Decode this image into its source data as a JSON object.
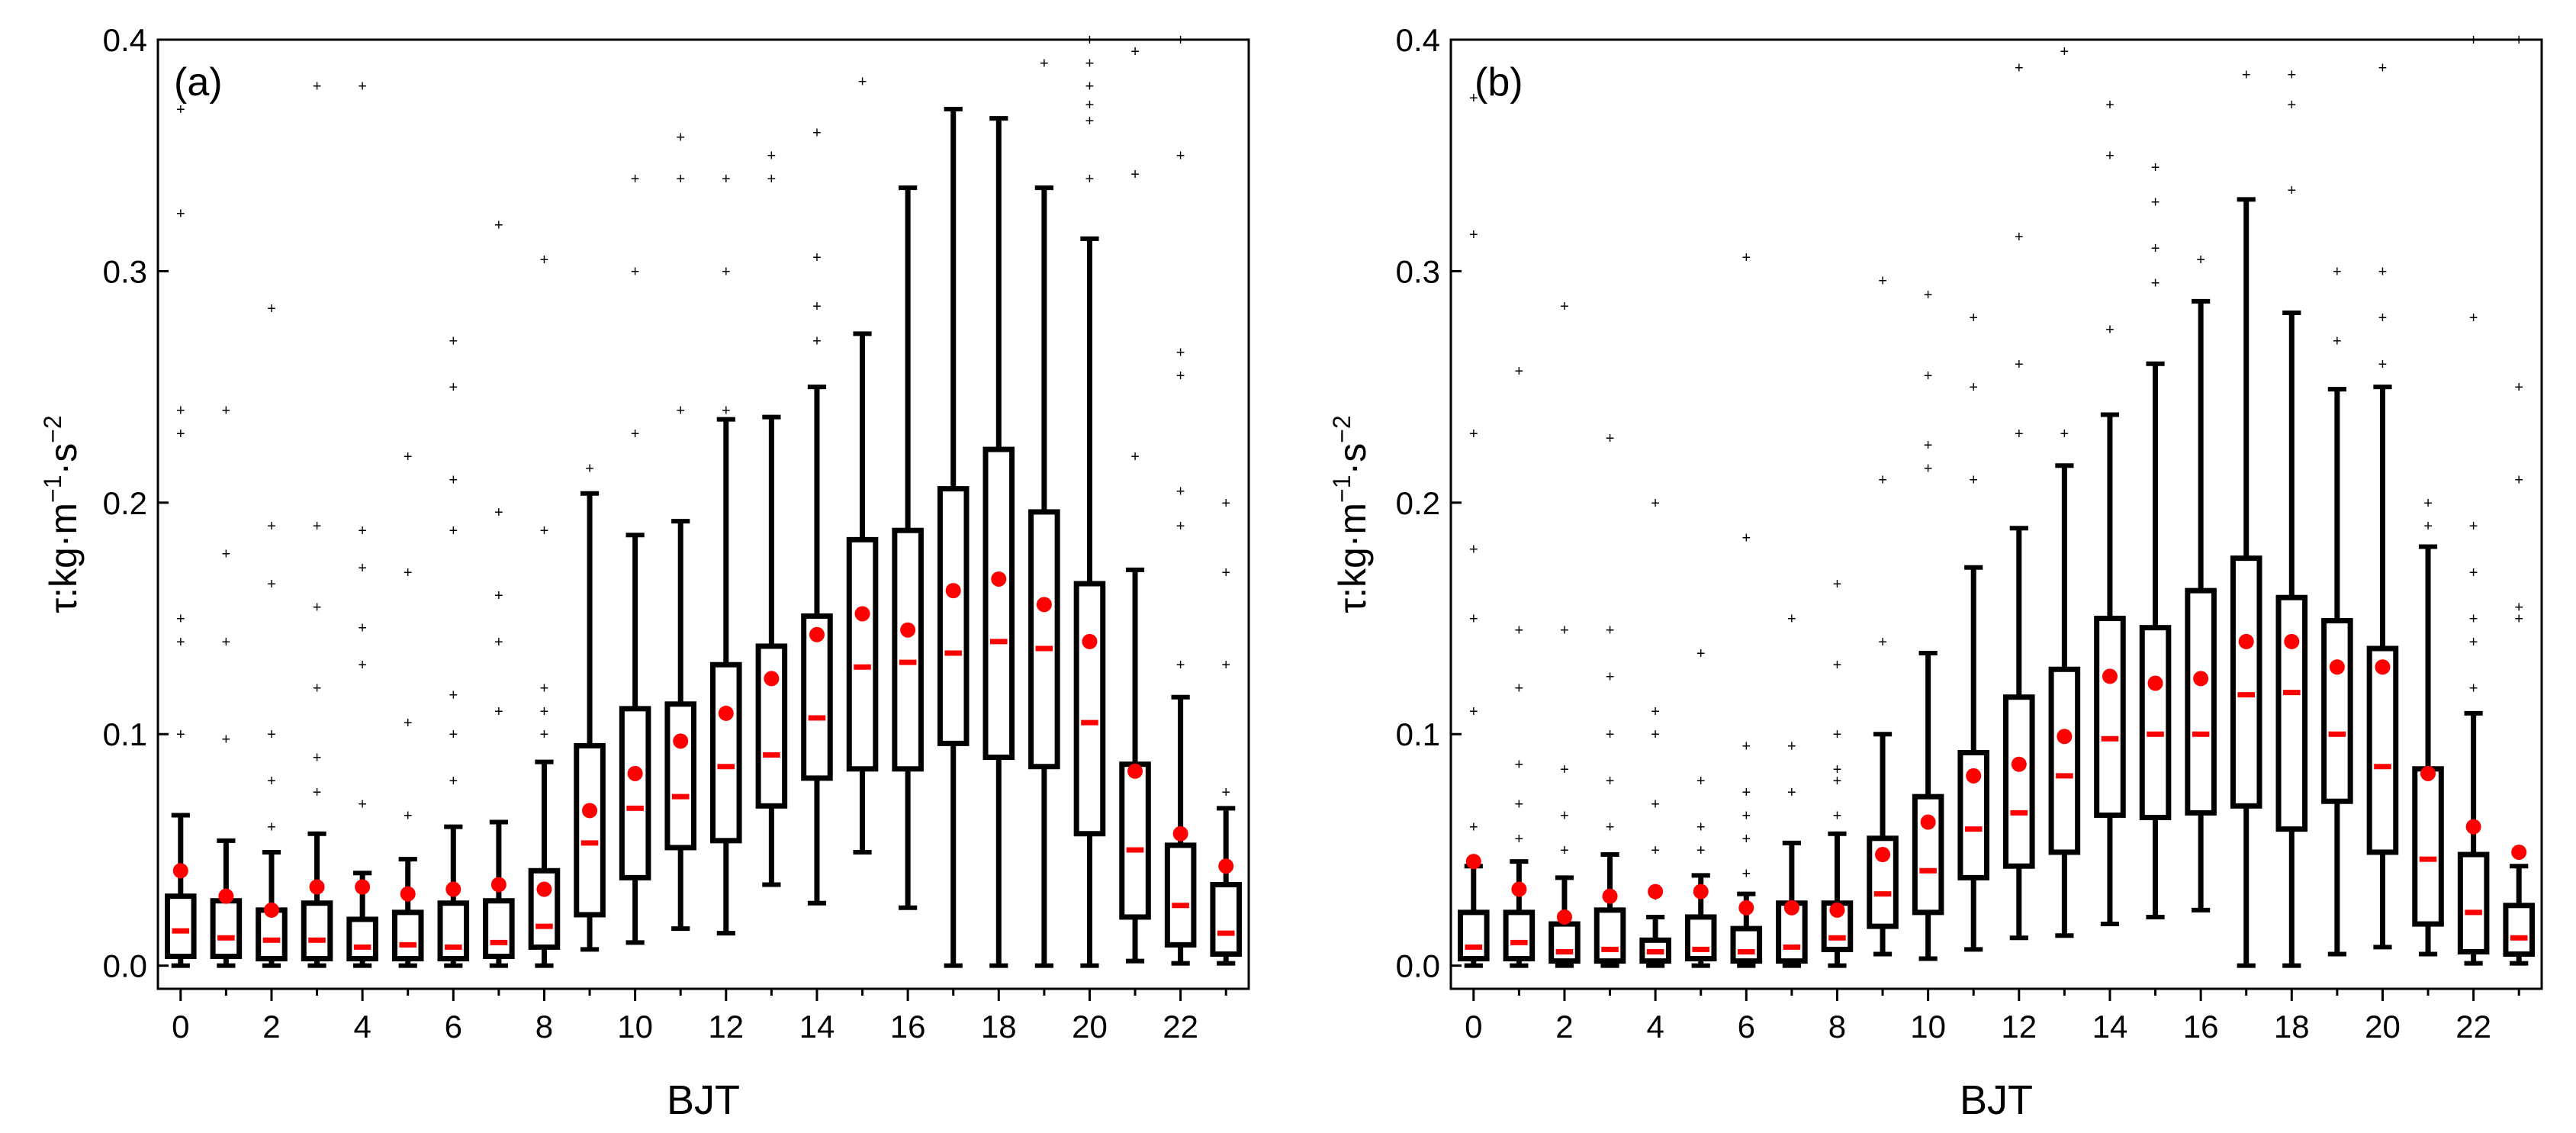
{
  "chart_data": [
    {
      "type": "box",
      "panel_label": "(a)",
      "xlabel": "BJT",
      "ylabel_main": "τ:kg·m",
      "ylabel_sup1": "−1",
      "ylabel_mid": "·s",
      "ylabel_sup2": "−2",
      "xlim": [
        -0.5,
        23.5
      ],
      "ylim": [
        -0.01,
        0.4
      ],
      "x_ticks": [
        0,
        2,
        4,
        6,
        8,
        10,
        12,
        14,
        16,
        18,
        20,
        22
      ],
      "x_tick_labels": [
        "0",
        "2",
        "4",
        "6",
        "8",
        "10",
        "12",
        "14",
        "16",
        "18",
        "20",
        "22"
      ],
      "y_ticks": [
        0.0,
        0.1,
        0.2,
        0.3,
        0.4
      ],
      "y_tick_labels": [
        "0.0",
        "0.1",
        "0.2",
        "0.3",
        "0.4"
      ],
      "colors": {
        "box": "#000000",
        "median": "#ff0000",
        "mean": "#ff0000",
        "outlier": "#555555"
      },
      "boxes": [
        {
          "x": 0,
          "whisker_low": 0.0,
          "q1": 0.004,
          "median": 0.015,
          "q3": 0.03,
          "whisker_high": 0.065,
          "mean": 0.041,
          "outliers": [
            0.1,
            0.14,
            0.15,
            0.23,
            0.24,
            0.325,
            0.37
          ]
        },
        {
          "x": 1,
          "whisker_low": 0.0,
          "q1": 0.004,
          "median": 0.012,
          "q3": 0.028,
          "whisker_high": 0.054,
          "mean": 0.03,
          "outliers": [
            0.098,
            0.14,
            0.178,
            0.24
          ]
        },
        {
          "x": 2,
          "whisker_low": 0.0,
          "q1": 0.003,
          "median": 0.011,
          "q3": 0.024,
          "whisker_high": 0.049,
          "mean": 0.024,
          "outliers": [
            0.06,
            0.08,
            0.1,
            0.165,
            0.19,
            0.284
          ]
        },
        {
          "x": 3,
          "whisker_low": 0.0,
          "q1": 0.003,
          "median": 0.011,
          "q3": 0.027,
          "whisker_high": 0.057,
          "mean": 0.034,
          "outliers": [
            0.075,
            0.09,
            0.12,
            0.155,
            0.19,
            0.38
          ]
        },
        {
          "x": 4,
          "whisker_low": 0.0,
          "q1": 0.003,
          "median": 0.008,
          "q3": 0.02,
          "whisker_high": 0.04,
          "mean": 0.034,
          "outliers": [
            0.07,
            0.13,
            0.146,
            0.172,
            0.188,
            0.38
          ]
        },
        {
          "x": 5,
          "whisker_low": 0.0,
          "q1": 0.003,
          "median": 0.009,
          "q3": 0.023,
          "whisker_high": 0.046,
          "mean": 0.031,
          "outliers": [
            0.065,
            0.105,
            0.17,
            0.22
          ]
        },
        {
          "x": 6,
          "whisker_low": 0.0,
          "q1": 0.003,
          "median": 0.008,
          "q3": 0.027,
          "whisker_high": 0.06,
          "mean": 0.033,
          "outliers": [
            0.08,
            0.1,
            0.117,
            0.188,
            0.21,
            0.25,
            0.27
          ]
        },
        {
          "x": 7,
          "whisker_low": 0.0,
          "q1": 0.004,
          "median": 0.01,
          "q3": 0.028,
          "whisker_high": 0.062,
          "mean": 0.035,
          "outliers": [
            0.11,
            0.14,
            0.16,
            0.196,
            0.32
          ]
        },
        {
          "x": 8,
          "whisker_low": 0.0,
          "q1": 0.008,
          "median": 0.017,
          "q3": 0.041,
          "whisker_high": 0.088,
          "mean": 0.033,
          "outliers": [
            0.1,
            0.11,
            0.12,
            0.188,
            0.305
          ]
        },
        {
          "x": 9,
          "whisker_low": 0.007,
          "q1": 0.022,
          "median": 0.053,
          "q3": 0.095,
          "whisker_high": 0.204,
          "mean": 0.067,
          "outliers": [
            0.215
          ]
        },
        {
          "x": 10,
          "whisker_low": 0.01,
          "q1": 0.038,
          "median": 0.068,
          "q3": 0.111,
          "whisker_high": 0.186,
          "mean": 0.083,
          "outliers": [
            0.23,
            0.3,
            0.34
          ]
        },
        {
          "x": 11,
          "whisker_low": 0.016,
          "q1": 0.051,
          "median": 0.073,
          "q3": 0.113,
          "whisker_high": 0.192,
          "mean": 0.097,
          "outliers": [
            0.24,
            0.34,
            0.358
          ]
        },
        {
          "x": 12,
          "whisker_low": 0.014,
          "q1": 0.054,
          "median": 0.086,
          "q3": 0.13,
          "whisker_high": 0.236,
          "mean": 0.109,
          "outliers": [
            0.24,
            0.3,
            0.34
          ]
        },
        {
          "x": 13,
          "whisker_low": 0.035,
          "q1": 0.069,
          "median": 0.091,
          "q3": 0.138,
          "whisker_high": 0.237,
          "mean": 0.124,
          "outliers": [
            0.34,
            0.35
          ]
        },
        {
          "x": 14,
          "whisker_low": 0.027,
          "q1": 0.081,
          "median": 0.107,
          "q3": 0.151,
          "whisker_high": 0.25,
          "mean": 0.143,
          "outliers": [
            0.27,
            0.285,
            0.306,
            0.36
          ]
        },
        {
          "x": 15,
          "whisker_low": 0.049,
          "q1": 0.085,
          "median": 0.129,
          "q3": 0.184,
          "whisker_high": 0.273,
          "mean": 0.152,
          "outliers": [
            0.382
          ]
        },
        {
          "x": 16,
          "whisker_low": 0.025,
          "q1": 0.085,
          "median": 0.131,
          "q3": 0.188,
          "whisker_high": 0.336,
          "mean": 0.145,
          "outliers": []
        },
        {
          "x": 17,
          "whisker_low": 0.0,
          "q1": 0.096,
          "median": 0.135,
          "q3": 0.206,
          "whisker_high": 0.37,
          "mean": 0.162,
          "outliers": []
        },
        {
          "x": 18,
          "whisker_low": 0.0,
          "q1": 0.09,
          "median": 0.14,
          "q3": 0.223,
          "whisker_high": 0.366,
          "mean": 0.167,
          "outliers": []
        },
        {
          "x": 19,
          "whisker_low": 0.0,
          "q1": 0.086,
          "median": 0.137,
          "q3": 0.196,
          "whisker_high": 0.336,
          "mean": 0.156,
          "outliers": [
            0.39
          ]
        },
        {
          "x": 20,
          "whisker_low": 0.0,
          "q1": 0.057,
          "median": 0.105,
          "q3": 0.165,
          "whisker_high": 0.314,
          "mean": 0.14,
          "outliers": [
            0.34,
            0.365,
            0.372,
            0.38,
            0.39,
            0.4
          ]
        },
        {
          "x": 21,
          "whisker_low": 0.002,
          "q1": 0.021,
          "median": 0.05,
          "q3": 0.087,
          "whisker_high": 0.171,
          "mean": 0.084,
          "outliers": [
            0.22,
            0.342,
            0.395
          ]
        },
        {
          "x": 22,
          "whisker_low": 0.001,
          "q1": 0.009,
          "median": 0.026,
          "q3": 0.052,
          "whisker_high": 0.116,
          "mean": 0.057,
          "outliers": [
            0.13,
            0.19,
            0.205,
            0.255,
            0.265,
            0.35,
            0.4
          ]
        },
        {
          "x": 23,
          "whisker_low": 0.001,
          "q1": 0.005,
          "median": 0.014,
          "q3": 0.035,
          "whisker_high": 0.068,
          "mean": 0.043,
          "outliers": [
            0.075,
            0.13,
            0.17,
            0.2
          ]
        }
      ]
    },
    {
      "type": "box",
      "panel_label": "(b)",
      "xlabel": "BJT",
      "ylabel_main": "τ:kg·m",
      "ylabel_sup1": "−1",
      "ylabel_mid": "·s",
      "ylabel_sup2": "−2",
      "xlim": [
        -0.5,
        23.5
      ],
      "ylim": [
        -0.01,
        0.4
      ],
      "x_ticks": [
        0,
        2,
        4,
        6,
        8,
        10,
        12,
        14,
        16,
        18,
        20,
        22
      ],
      "x_tick_labels": [
        "0",
        "2",
        "4",
        "6",
        "8",
        "10",
        "12",
        "14",
        "16",
        "18",
        "20",
        "22"
      ],
      "y_ticks": [
        0.0,
        0.1,
        0.2,
        0.3,
        0.4
      ],
      "y_tick_labels": [
        "0.0",
        "0.1",
        "0.2",
        "0.3",
        "0.4"
      ],
      "colors": {
        "box": "#000000",
        "median": "#ff0000",
        "mean": "#ff0000",
        "outlier": "#555555"
      },
      "boxes": [
        {
          "x": 0,
          "whisker_low": 0.0,
          "q1": 0.003,
          "median": 0.008,
          "q3": 0.023,
          "whisker_high": 0.043,
          "mean": 0.045,
          "outliers": [
            0.06,
            0.11,
            0.15,
            0.18,
            0.23,
            0.316,
            0.375
          ]
        },
        {
          "x": 1,
          "whisker_low": 0.0,
          "q1": 0.003,
          "median": 0.01,
          "q3": 0.023,
          "whisker_high": 0.045,
          "mean": 0.033,
          "outliers": [
            0.055,
            0.07,
            0.087,
            0.12,
            0.145,
            0.257
          ]
        },
        {
          "x": 2,
          "whisker_low": 0.0,
          "q1": 0.002,
          "median": 0.006,
          "q3": 0.018,
          "whisker_high": 0.038,
          "mean": 0.021,
          "outliers": [
            0.05,
            0.065,
            0.085,
            0.145,
            0.285
          ]
        },
        {
          "x": 3,
          "whisker_low": 0.0,
          "q1": 0.002,
          "median": 0.007,
          "q3": 0.024,
          "whisker_high": 0.048,
          "mean": 0.03,
          "outliers": [
            0.06,
            0.08,
            0.1,
            0.125,
            0.145,
            0.228
          ]
        },
        {
          "x": 4,
          "whisker_low": 0.0,
          "q1": 0.002,
          "median": 0.006,
          "q3": 0.011,
          "whisker_high": 0.021,
          "mean": 0.032,
          "outliers": [
            0.03,
            0.05,
            0.07,
            0.1,
            0.11,
            0.2
          ]
        },
        {
          "x": 5,
          "whisker_low": 0.0,
          "q1": 0.003,
          "median": 0.007,
          "q3": 0.021,
          "whisker_high": 0.039,
          "mean": 0.032,
          "outliers": [
            0.05,
            0.06,
            0.08,
            0.135
          ]
        },
        {
          "x": 6,
          "whisker_low": 0.0,
          "q1": 0.002,
          "median": 0.006,
          "q3": 0.016,
          "whisker_high": 0.031,
          "mean": 0.025,
          "outliers": [
            0.04,
            0.055,
            0.065,
            0.075,
            0.095,
            0.185,
            0.306
          ]
        },
        {
          "x": 7,
          "whisker_low": 0.0,
          "q1": 0.002,
          "median": 0.008,
          "q3": 0.027,
          "whisker_high": 0.053,
          "mean": 0.025,
          "outliers": [
            0.075,
            0.095,
            0.15
          ]
        },
        {
          "x": 8,
          "whisker_low": 0.0,
          "q1": 0.007,
          "median": 0.012,
          "q3": 0.027,
          "whisker_high": 0.057,
          "mean": 0.024,
          "outliers": [
            0.065,
            0.08,
            0.085,
            0.1,
            0.13,
            0.165
          ]
        },
        {
          "x": 9,
          "whisker_low": 0.005,
          "q1": 0.017,
          "median": 0.031,
          "q3": 0.055,
          "whisker_high": 0.1,
          "mean": 0.048,
          "outliers": [
            0.14,
            0.21,
            0.296
          ]
        },
        {
          "x": 10,
          "whisker_low": 0.003,
          "q1": 0.023,
          "median": 0.041,
          "q3": 0.073,
          "whisker_high": 0.135,
          "mean": 0.062,
          "outliers": [
            0.215,
            0.225,
            0.255,
            0.29
          ]
        },
        {
          "x": 11,
          "whisker_low": 0.007,
          "q1": 0.038,
          "median": 0.059,
          "q3": 0.092,
          "whisker_high": 0.172,
          "mean": 0.082,
          "outliers": [
            0.21,
            0.25,
            0.28
          ]
        },
        {
          "x": 12,
          "whisker_low": 0.012,
          "q1": 0.043,
          "median": 0.066,
          "q3": 0.116,
          "whisker_high": 0.189,
          "mean": 0.087,
          "outliers": [
            0.23,
            0.26,
            0.315,
            0.388
          ]
        },
        {
          "x": 13,
          "whisker_low": 0.013,
          "q1": 0.049,
          "median": 0.082,
          "q3": 0.128,
          "whisker_high": 0.216,
          "mean": 0.099,
          "outliers": [
            0.23,
            0.395
          ]
        },
        {
          "x": 14,
          "whisker_low": 0.018,
          "q1": 0.065,
          "median": 0.098,
          "q3": 0.15,
          "whisker_high": 0.238,
          "mean": 0.125,
          "outliers": [
            0.275,
            0.35,
            0.372
          ]
        },
        {
          "x": 15,
          "whisker_low": 0.021,
          "q1": 0.064,
          "median": 0.1,
          "q3": 0.146,
          "whisker_high": 0.26,
          "mean": 0.122,
          "outliers": [
            0.295,
            0.31,
            0.33,
            0.345
          ]
        },
        {
          "x": 16,
          "whisker_low": 0.024,
          "q1": 0.066,
          "median": 0.1,
          "q3": 0.162,
          "whisker_high": 0.287,
          "mean": 0.124,
          "outliers": [
            0.305
          ]
        },
        {
          "x": 17,
          "whisker_low": 0.0,
          "q1": 0.069,
          "median": 0.117,
          "q3": 0.176,
          "whisker_high": 0.331,
          "mean": 0.14,
          "outliers": [
            0.385
          ]
        },
        {
          "x": 18,
          "whisker_low": 0.0,
          "q1": 0.059,
          "median": 0.118,
          "q3": 0.159,
          "whisker_high": 0.282,
          "mean": 0.14,
          "outliers": [
            0.335,
            0.372,
            0.385
          ]
        },
        {
          "x": 19,
          "whisker_low": 0.005,
          "q1": 0.071,
          "median": 0.1,
          "q3": 0.149,
          "whisker_high": 0.249,
          "mean": 0.129,
          "outliers": [
            0.27,
            0.3
          ]
        },
        {
          "x": 20,
          "whisker_low": 0.008,
          "q1": 0.049,
          "median": 0.086,
          "q3": 0.137,
          "whisker_high": 0.25,
          "mean": 0.129,
          "outliers": [
            0.26,
            0.28,
            0.3,
            0.388
          ]
        },
        {
          "x": 21,
          "whisker_low": 0.005,
          "q1": 0.018,
          "median": 0.046,
          "q3": 0.085,
          "whisker_high": 0.181,
          "mean": 0.083,
          "outliers": [
            0.19,
            0.2
          ]
        },
        {
          "x": 22,
          "whisker_low": 0.001,
          "q1": 0.006,
          "median": 0.023,
          "q3": 0.048,
          "whisker_high": 0.109,
          "mean": 0.06,
          "outliers": [
            0.12,
            0.14,
            0.15,
            0.17,
            0.19,
            0.28,
            0.4
          ]
        },
        {
          "x": 23,
          "whisker_low": 0.001,
          "q1": 0.005,
          "median": 0.012,
          "q3": 0.026,
          "whisker_high": 0.043,
          "mean": 0.049,
          "outliers": [
            0.15,
            0.155,
            0.21,
            0.25,
            0.4
          ]
        }
      ]
    }
  ]
}
